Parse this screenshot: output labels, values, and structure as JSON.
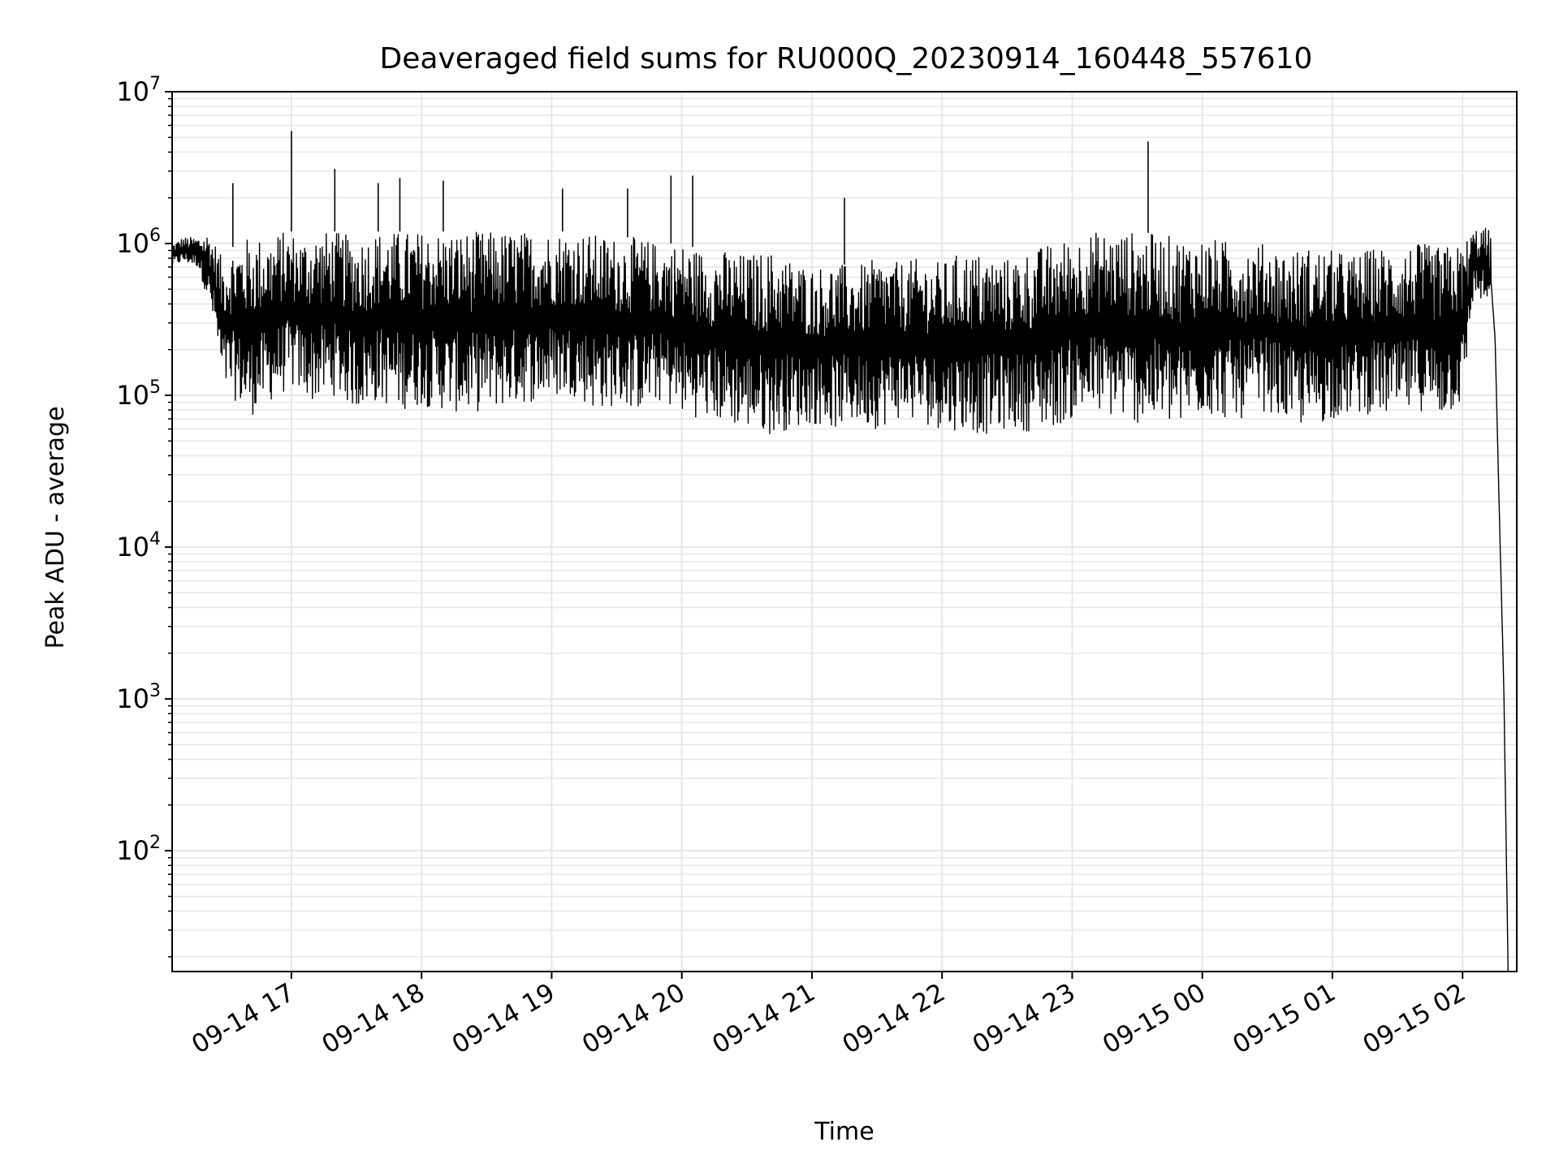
{
  "chart_data": {
    "type": "line",
    "title": "Deaveraged field sums for RU000Q_20230914_160448_557610",
    "xlabel": "Time",
    "ylabel": "Peak ADU - average",
    "yscale": "log",
    "ylim": [
      16,
      10000000
    ],
    "xlim": [
      "2023-09-14 16:05",
      "2023-09-15 02:25"
    ],
    "grid": true,
    "grid_color": "#e6e6e6",
    "line_color": "#000000",
    "x_ticks": [
      {
        "label": "09-14 17",
        "t": "2023-09-14 17:00"
      },
      {
        "label": "09-14 18",
        "t": "2023-09-14 18:00"
      },
      {
        "label": "09-14 19",
        "t": "2023-09-14 19:00"
      },
      {
        "label": "09-14 20",
        "t": "2023-09-14 20:00"
      },
      {
        "label": "09-14 21",
        "t": "2023-09-14 21:00"
      },
      {
        "label": "09-14 22",
        "t": "2023-09-14 22:00"
      },
      {
        "label": "09-14 23",
        "t": "2023-09-14 23:00"
      },
      {
        "label": "09-15 00",
        "t": "2023-09-15 00:00"
      },
      {
        "label": "09-15 01",
        "t": "2023-09-15 01:00"
      },
      {
        "label": "09-15 02",
        "t": "2023-09-15 02:00"
      }
    ],
    "y_ticks": [
      {
        "base": "10",
        "exp": "2",
        "value": 100
      },
      {
        "base": "10",
        "exp": "3",
        "value": 1000
      },
      {
        "base": "10",
        "exp": "4",
        "value": 10000
      },
      {
        "base": "10",
        "exp": "5",
        "value": 100000
      },
      {
        "base": "10",
        "exp": "6",
        "value": 1000000
      },
      {
        "base": "10",
        "exp": "7",
        "value": 10000000
      }
    ],
    "series": [
      {
        "t": [
          "2023-09-14 16:05",
          "2023-09-14 16:10",
          "2023-09-14 16:17",
          "2023-09-14 16:22",
          "2023-09-14 16:25",
          "2023-09-14 16:28",
          "2023-09-14 16:31",
          "2023-09-14 16:35",
          "2023-09-14 16:40",
          "2023-09-14 16:45",
          "2023-09-14 16:50",
          "2023-09-14 16:55",
          "2023-09-14 17:00",
          "2023-09-14 17:05",
          "2023-09-14 17:10",
          "2023-09-14 17:20",
          "2023-09-14 17:30",
          "2023-09-14 17:40",
          "2023-09-14 17:50",
          "2023-09-14 18:00",
          "2023-09-14 18:10",
          "2023-09-14 18:20",
          "2023-09-14 18:30",
          "2023-09-14 18:40",
          "2023-09-14 18:50",
          "2023-09-14 19:00",
          "2023-09-14 19:10",
          "2023-09-14 19:20",
          "2023-09-14 19:30",
          "2023-09-14 19:40",
          "2023-09-14 19:50",
          "2023-09-14 20:00",
          "2023-09-14 20:10",
          "2023-09-14 20:20",
          "2023-09-14 20:30",
          "2023-09-14 20:40",
          "2023-09-14 20:50",
          "2023-09-14 21:00",
          "2023-09-14 21:10",
          "2023-09-14 21:20",
          "2023-09-14 21:30",
          "2023-09-14 21:40",
          "2023-09-14 21:50",
          "2023-09-14 22:00",
          "2023-09-14 22:10",
          "2023-09-14 22:20",
          "2023-09-14 22:30",
          "2023-09-14 22:40",
          "2023-09-14 22:50",
          "2023-09-14 23:00",
          "2023-09-14 23:10",
          "2023-09-14 23:20",
          "2023-09-14 23:30",
          "2023-09-14 23:40",
          "2023-09-14 23:50",
          "2023-09-15 00:00",
          "2023-09-15 00:10",
          "2023-09-15 00:20",
          "2023-09-15 00:30",
          "2023-09-15 00:40",
          "2023-09-15 00:50",
          "2023-09-15 01:00",
          "2023-09-15 01:10",
          "2023-09-15 01:20",
          "2023-09-15 01:30",
          "2023-09-15 01:40",
          "2023-09-15 01:50",
          "2023-09-15 02:00",
          "2023-09-15 02:05",
          "2023-09-15 02:10",
          "2023-09-15 02:13",
          "2023-09-15 02:15",
          "2023-09-15 02:17",
          "2023-09-15 02:19",
          "2023-09-15 02:21"
        ],
        "low": [
          700000,
          750000,
          700000,
          400000,
          250000,
          110000,
          100000,
          90000,
          70000,
          80000,
          90000,
          100000,
          110000,
          100000,
          90000,
          100000,
          80000,
          90000,
          80000,
          85000,
          80000,
          75000,
          80000,
          85000,
          90000,
          95000,
          100000,
          80000,
          85000,
          80000,
          90000,
          75000,
          70000,
          65000,
          60000,
          55000,
          60000,
          65000,
          60000,
          65000,
          60000,
          70000,
          65000,
          60000,
          58000,
          55000,
          60000,
          58000,
          60000,
          70000,
          75000,
          70000,
          65000,
          65000,
          60000,
          75000,
          70000,
          70000,
          80000,
          65000,
          60000,
          70000,
          75000,
          75000,
          70000,
          80000,
          70000,
          85000,
          450000,
          400000,
          300000,
          80000,
          5000,
          300,
          16
        ],
        "high": [
          1000000,
          1100000,
          1100000,
          1200000,
          1000000,
          800000,
          900000,
          1000000,
          1100000,
          1100000,
          1100000,
          1200000,
          1200000,
          1100000,
          1200000,
          1200000,
          1100000,
          1200000,
          1200000,
          1200000,
          1200000,
          1200000,
          1200000,
          1200000,
          1200000,
          1200000,
          1200000,
          1150000,
          1100000,
          1100000,
          1000000,
          1000000,
          900000,
          900000,
          850000,
          900000,
          800000,
          700000,
          750000,
          700000,
          800000,
          750000,
          800000,
          750000,
          900000,
          850000,
          800000,
          900000,
          1000000,
          1100000,
          1200000,
          1200000,
          1200000,
          1150000,
          1100000,
          1100000,
          1050000,
          1000000,
          1000000,
          900000,
          950000,
          900000,
          850000,
          950000,
          950000,
          1000000,
          950000,
          1000000,
          1250000,
          1300000,
          1200000,
          700000,
          50000,
          5000,
          16
        ]
      }
    ],
    "spikes": [
      {
        "t": "2023-09-14 16:33",
        "value": 2500000
      },
      {
        "t": "2023-09-14 17:00",
        "value": 5500000
      },
      {
        "t": "2023-09-14 17:20",
        "value": 3100000
      },
      {
        "t": "2023-09-14 17:40",
        "value": 2500000
      },
      {
        "t": "2023-09-14 17:50",
        "value": 2700000
      },
      {
        "t": "2023-09-14 18:10",
        "value": 2600000
      },
      {
        "t": "2023-09-14 19:05",
        "value": 2300000
      },
      {
        "t": "2023-09-14 19:35",
        "value": 2300000
      },
      {
        "t": "2023-09-14 19:55",
        "value": 2800000
      },
      {
        "t": "2023-09-14 20:05",
        "value": 2800000
      },
      {
        "t": "2023-09-14 21:15",
        "value": 2000000
      },
      {
        "t": "2023-09-14 23:35",
        "value": 4700000
      }
    ]
  }
}
